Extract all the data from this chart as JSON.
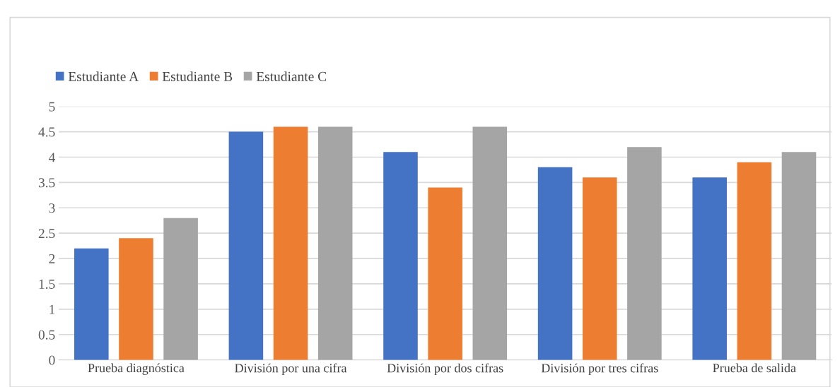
{
  "chart_data": {
    "type": "bar",
    "categories": [
      "Prueba diagnóstica",
      "División por una cifra",
      "División por dos cifras",
      "División por tres cifras",
      "Prueba de salida"
    ],
    "series": [
      {
        "name": "Estudiante A",
        "color": "#4472c4",
        "values": [
          2.2,
          4.5,
          4.1,
          3.8,
          3.6
        ]
      },
      {
        "name": "Estudiante B",
        "color": "#ed7d31",
        "values": [
          2.4,
          4.6,
          3.4,
          3.6,
          3.9
        ]
      },
      {
        "name": "Estudiante C",
        "color": "#a5a5a5",
        "values": [
          2.8,
          4.6,
          4.6,
          4.2,
          4.1
        ]
      }
    ],
    "ylim": [
      0,
      5
    ],
    "yticks": [
      0,
      0.5,
      1,
      1.5,
      2,
      2.5,
      3,
      3.5,
      4,
      4.5,
      5
    ],
    "grid": "y",
    "legend": "top left"
  }
}
